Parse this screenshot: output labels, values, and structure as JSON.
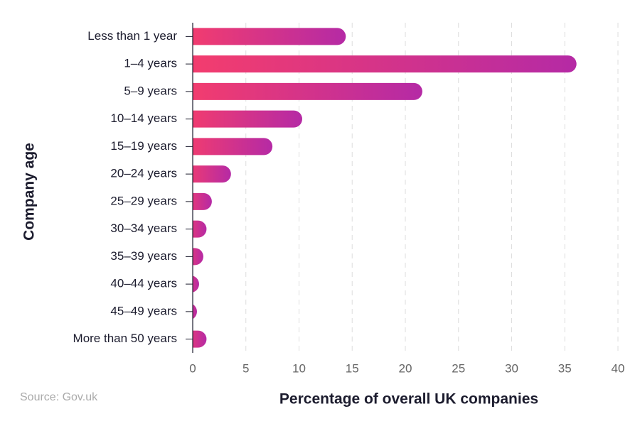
{
  "chart_data": {
    "type": "bar",
    "orientation": "horizontal",
    "x_label": "Percentage of overall UK companies",
    "y_label": "Company age",
    "source": "Source: Gov.uk",
    "categories": [
      "Less than 1 year",
      "1–4 years",
      "5–9 years",
      "10–14 years",
      "15–19 years",
      "20–24 years",
      "25–29 years",
      "30–34 years",
      "35–39 years",
      "40–44 years",
      "45–49 years",
      "More than 50 years"
    ],
    "values": [
      14.4,
      36.1,
      21.6,
      10.3,
      7.5,
      3.6,
      1.8,
      1.3,
      1.0,
      0.6,
      0.4,
      1.3
    ],
    "gradient_colors": [
      "#f43d6d",
      "#b52aa5"
    ],
    "xlim": [
      0,
      40
    ],
    "xticks": [
      0,
      5,
      10,
      15,
      20,
      25,
      30,
      35,
      40
    ],
    "grid": true
  }
}
